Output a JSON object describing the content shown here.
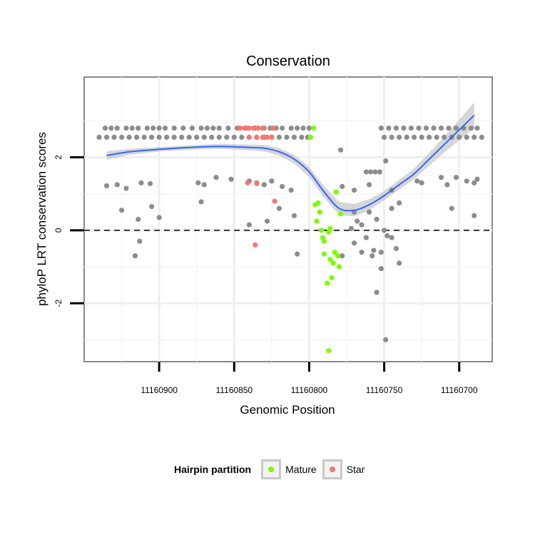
{
  "chart_data": {
    "type": "scatter",
    "title": "Conservation",
    "xlabel": "Genomic Position",
    "ylabel": "phyloP LRT conservation scores",
    "x_reversed": true,
    "xlim": [
      11160950,
      11160678
    ],
    "ylim": [
      -3.6,
      4.2
    ],
    "x_ticks": [
      11160900,
      11160850,
      11160800,
      11160750,
      11160700
    ],
    "x_tick_labels": [
      "11160900",
      "11160850",
      "11160800",
      "11160750",
      "11160700"
    ],
    "y_ticks": [
      -2,
      0,
      2
    ],
    "y_tick_labels": [
      "-2",
      "0",
      "2"
    ],
    "hline": {
      "y": 0,
      "style": "dashed"
    },
    "legend": {
      "title": "Hairpin partition",
      "position": "bottom",
      "entries": [
        {
          "label": "Mature",
          "color": "#7cfc00"
        },
        {
          "label": "Star",
          "color": "#f8766d"
        }
      ]
    },
    "colors": {
      "other": "#8c8c8c",
      "mature": "#7cfc00",
      "star": "#f8766d",
      "smooth": "#3366ff",
      "ribbon": "#c8c8c8"
    },
    "series": [
      {
        "name": "Other",
        "points": [
          [
            11160936,
            2.8
          ],
          [
            11160932,
            2.8
          ],
          [
            11160928,
            2.8
          ],
          [
            11160922,
            2.8
          ],
          [
            11160918,
            2.8
          ],
          [
            11160914,
            2.8
          ],
          [
            11160908,
            2.8
          ],
          [
            11160904,
            2.8
          ],
          [
            11160900,
            2.8
          ],
          [
            11160896,
            2.8
          ],
          [
            11160890,
            2.8
          ],
          [
            11160884,
            2.8
          ],
          [
            11160878,
            2.8
          ],
          [
            11160872,
            2.8
          ],
          [
            11160868,
            2.8
          ],
          [
            11160864,
            2.8
          ],
          [
            11160860,
            2.8
          ],
          [
            11160854,
            2.8
          ],
          [
            11160848,
            2.8
          ],
          [
            11160842,
            2.8
          ],
          [
            11160836,
            2.8
          ],
          [
            11160830,
            2.8
          ],
          [
            11160826,
            2.8
          ],
          [
            11160822,
            2.8
          ],
          [
            11160818,
            2.8
          ],
          [
            11160812,
            2.8
          ],
          [
            11160808,
            2.8
          ],
          [
            11160804,
            2.8
          ],
          [
            11160800,
            2.8
          ],
          [
            11160940,
            2.55
          ],
          [
            11160935,
            2.55
          ],
          [
            11160930,
            2.55
          ],
          [
            11160925,
            2.55
          ],
          [
            11160920,
            2.55
          ],
          [
            11160915,
            2.55
          ],
          [
            11160910,
            2.55
          ],
          [
            11160905,
            2.55
          ],
          [
            11160900,
            2.55
          ],
          [
            11160895,
            2.55
          ],
          [
            11160890,
            2.55
          ],
          [
            11160885,
            2.55
          ],
          [
            11160880,
            2.55
          ],
          [
            11160875,
            2.55
          ],
          [
            11160870,
            2.55
          ],
          [
            11160865,
            2.55
          ],
          [
            11160860,
            2.55
          ],
          [
            11160855,
            2.55
          ],
          [
            11160850,
            2.55
          ],
          [
            11160845,
            2.55
          ],
          [
            11160840,
            2.55
          ],
          [
            11160835,
            2.55
          ],
          [
            11160830,
            2.55
          ],
          [
            11160825,
            2.55
          ],
          [
            11160820,
            2.55
          ],
          [
            11160815,
            2.55
          ],
          [
            11160810,
            2.55
          ],
          [
            11160805,
            2.55
          ],
          [
            11160801,
            2.55
          ],
          [
            11160752,
            2.8
          ],
          [
            11160747,
            2.8
          ],
          [
            11160742,
            2.8
          ],
          [
            11160737,
            2.8
          ],
          [
            11160732,
            2.8
          ],
          [
            11160727,
            2.8
          ],
          [
            11160722,
            2.8
          ],
          [
            11160717,
            2.8
          ],
          [
            11160712,
            2.8
          ],
          [
            11160707,
            2.8
          ],
          [
            11160702,
            2.8
          ],
          [
            11160697,
            2.8
          ],
          [
            11160692,
            2.8
          ],
          [
            11160688,
            2.8
          ],
          [
            11160750,
            2.55
          ],
          [
            11160745,
            2.55
          ],
          [
            11160740,
            2.55
          ],
          [
            11160735,
            2.55
          ],
          [
            11160730,
            2.55
          ],
          [
            11160725,
            2.55
          ],
          [
            11160720,
            2.55
          ],
          [
            11160715,
            2.55
          ],
          [
            11160710,
            2.55
          ],
          [
            11160705,
            2.55
          ],
          [
            11160700,
            2.55
          ],
          [
            11160695,
            2.55
          ],
          [
            11160690,
            2.55
          ],
          [
            11160685,
            2.55
          ],
          [
            11160935,
            1.22
          ],
          [
            11160928,
            1.25
          ],
          [
            11160922,
            1.15
          ],
          [
            11160912,
            1.3
          ],
          [
            11160906,
            1.28
          ],
          [
            11160874,
            1.3
          ],
          [
            11160870,
            1.25
          ],
          [
            11160862,
            1.45
          ],
          [
            11160852,
            1.4
          ],
          [
            11160840,
            1.35
          ],
          [
            11160835,
            1.3
          ],
          [
            11160830,
            1.25
          ],
          [
            11160825,
            1.35
          ],
          [
            11160818,
            1.2
          ],
          [
            11160812,
            1.1
          ],
          [
            11160925,
            0.55
          ],
          [
            11160914,
            0.3
          ],
          [
            11160905,
            0.65
          ],
          [
            11160900,
            0.35
          ],
          [
            11160872,
            0.78
          ],
          [
            11160840,
            0.15
          ],
          [
            11160828,
            0.25
          ],
          [
            11160820,
            0.6
          ],
          [
            11160810,
            0.4
          ],
          [
            11160913,
            -0.3
          ],
          [
            11160916,
            -0.7
          ],
          [
            11160808,
            -0.65
          ],
          [
            11160778,
            1.2
          ],
          [
            11160770,
            1.1
          ],
          [
            11160762,
            1.6
          ],
          [
            11160759,
            1.6
          ],
          [
            11160756,
            1.6
          ],
          [
            11160753,
            1.6
          ],
          [
            11160779,
            2.2
          ],
          [
            11160749,
            1.9
          ],
          [
            11160750,
            0.0
          ],
          [
            11160770,
            0.5
          ],
          [
            11160760,
            0.5
          ],
          [
            11160755,
            0.3
          ],
          [
            11160765,
            0.15
          ],
          [
            11160768,
            0.25
          ],
          [
            11160772,
            0.05
          ],
          [
            11160757,
            -0.55
          ],
          [
            11160752,
            -0.6
          ],
          [
            11160742,
            -0.5
          ],
          [
            11160745,
            -0.2
          ],
          [
            11160748,
            -0.15
          ],
          [
            11160762,
            -0.2
          ],
          [
            11160758,
            -0.7
          ],
          [
            11160755,
            -1.7
          ],
          [
            11160752,
            -1.05
          ],
          [
            11160749,
            -3.0
          ],
          [
            11160778,
            -0.7
          ],
          [
            11160770,
            -0.35
          ],
          [
            11160765,
            -0.6
          ],
          [
            11160745,
            0.6
          ],
          [
            11160740,
            0.75
          ],
          [
            11160728,
            1.35
          ],
          [
            11160725,
            1.3
          ],
          [
            11160712,
            1.45
          ],
          [
            11160708,
            1.25
          ],
          [
            11160702,
            1.45
          ],
          [
            11160695,
            1.35
          ],
          [
            11160690,
            1.3
          ],
          [
            11160688,
            1.4
          ],
          [
            11160690,
            0.4
          ],
          [
            11160705,
            0.6
          ],
          [
            11160740,
            -0.9
          ],
          [
            11160760,
            1.25
          ],
          [
            11160745,
            1.1
          ]
        ]
      },
      {
        "name": "Mature",
        "points": [
          [
            11160799,
            2.55
          ],
          [
            11160797,
            2.8
          ],
          [
            11160796,
            0.7
          ],
          [
            11160795,
            0.25
          ],
          [
            11160794,
            0.75
          ],
          [
            11160793,
            0.5
          ],
          [
            11160792,
            0.0
          ],
          [
            11160791,
            -0.2
          ],
          [
            11160790,
            -0.3
          ],
          [
            11160790,
            -0.65
          ],
          [
            11160788,
            -1.45
          ],
          [
            11160787,
            -0.05
          ],
          [
            11160786,
            0.05
          ],
          [
            11160785,
            -1.3
          ],
          [
            11160784,
            -0.9
          ],
          [
            11160783,
            -0.6
          ],
          [
            11160782,
            1.05
          ],
          [
            11160781,
            -0.7
          ],
          [
            11160780,
            -1.0
          ],
          [
            11160779,
            0.45
          ],
          [
            11160787,
            -3.3
          ],
          [
            11160786,
            -0.8
          ]
        ]
      },
      {
        "name": "Star",
        "points": [
          [
            11160846,
            2.8
          ],
          [
            11160843,
            2.8
          ],
          [
            11160840,
            2.8
          ],
          [
            11160837,
            2.8
          ],
          [
            11160834,
            2.8
          ],
          [
            11160831,
            2.8
          ],
          [
            11160824,
            2.8
          ],
          [
            11160840,
            2.55
          ],
          [
            11160835,
            2.55
          ],
          [
            11160831,
            2.55
          ],
          [
            11160828,
            2.55
          ],
          [
            11160825,
            2.55
          ],
          [
            11160841,
            1.3
          ],
          [
            11160835,
            1.28
          ],
          [
            11160823,
            0.8
          ],
          [
            11160836,
            -0.4
          ]
        ]
      }
    ],
    "smooth_line": {
      "x": [
        11160935,
        11160920,
        11160900,
        11160880,
        11160860,
        11160840,
        11160830,
        11160820,
        11160810,
        11160800,
        11160790,
        11160780,
        11160770,
        11160760,
        11160750,
        11160740,
        11160730,
        11160720,
        11160710,
        11160700,
        11160690
      ],
      "y": [
        2.05,
        2.15,
        2.22,
        2.27,
        2.3,
        2.27,
        2.25,
        2.15,
        1.95,
        1.6,
        1.05,
        0.6,
        0.55,
        0.7,
        0.95,
        1.25,
        1.55,
        1.95,
        2.35,
        2.75,
        3.15
      ],
      "band": [
        0.12,
        0.08,
        0.06,
        0.06,
        0.07,
        0.08,
        0.09,
        0.1,
        0.12,
        0.14,
        0.16,
        0.18,
        0.17,
        0.15,
        0.13,
        0.13,
        0.15,
        0.18,
        0.22,
        0.28,
        0.35
      ]
    }
  }
}
